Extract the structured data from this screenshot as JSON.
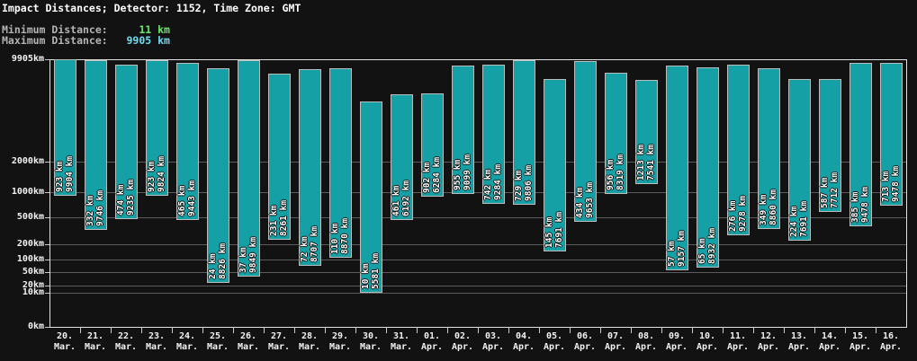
{
  "header": {
    "title": "Impact Distances; Detector: 1152, Time Zone: GMT",
    "min_label": "Minimum Distance:",
    "min_value": "11 km",
    "max_label": "Maximum Distance:",
    "max_value": "9905 km"
  },
  "colors": {
    "background": "#121212",
    "title_text": "#ffffff",
    "label_gray": "#b4b4b4",
    "min_value_green": "#6ae86a",
    "max_value_cyan": "#6fdcf2",
    "bar_fill": "#14a0a4",
    "bar_border": "#b9bebc",
    "grid": "#5b5b5b",
    "axis": "#e2e2e2",
    "bar_label_text": "#ffffff"
  },
  "chart_data": {
    "type": "bar",
    "subtype": "floating-range-bars",
    "title": "Impact Distances; Detector: 1152, Time Zone: GMT",
    "unit": "km",
    "grid": true,
    "y_scale": {
      "kind": "power",
      "exponent": 0.3,
      "min": 0,
      "max": 9905
    },
    "y_ticks": [
      {
        "value": 9905,
        "label": "9905km"
      },
      {
        "value": 2000,
        "label": "2000km"
      },
      {
        "value": 1000,
        "label": "1000km"
      },
      {
        "value": 500,
        "label": "500km"
      },
      {
        "value": 200,
        "label": "200km"
      },
      {
        "value": 100,
        "label": "100km"
      },
      {
        "value": 50,
        "label": "50km"
      },
      {
        "value": 20,
        "label": "20km"
      },
      {
        "value": 10,
        "label": "10km"
      },
      {
        "value": 0,
        "label": "0km"
      }
    ],
    "bars": [
      {
        "day": "20.",
        "month": "Mar.",
        "min": 923,
        "max": 9904
      },
      {
        "day": "21.",
        "month": "Mar.",
        "min": 332,
        "max": 9746
      },
      {
        "day": "22.",
        "month": "Mar.",
        "min": 474,
        "max": 9235
      },
      {
        "day": "23.",
        "month": "Mar.",
        "min": 923,
        "max": 9824
      },
      {
        "day": "24.",
        "month": "Mar.",
        "min": 465,
        "max": 9443
      },
      {
        "day": "25.",
        "month": "Mar.",
        "min": 24,
        "max": 8826
      },
      {
        "day": "26.",
        "month": "Mar.",
        "min": 37,
        "max": 9849
      },
      {
        "day": "27.",
        "month": "Mar.",
        "min": 231,
        "max": 8261
      },
      {
        "day": "28.",
        "month": "Mar.",
        "min": 72,
        "max": 8707
      },
      {
        "day": "29.",
        "month": "Mar.",
        "min": 110,
        "max": 8870
      },
      {
        "day": "30.",
        "month": "Mar.",
        "min": 10,
        "max": 5581
      },
      {
        "day": "31.",
        "month": "Mar.",
        "min": 461,
        "max": 6192
      },
      {
        "day": "01.",
        "month": "Apr.",
        "min": 902,
        "max": 6284
      },
      {
        "day": "02.",
        "month": "Apr.",
        "min": 955,
        "max": 9099
      },
      {
        "day": "03.",
        "month": "Apr.",
        "min": 742,
        "max": 9284
      },
      {
        "day": "04.",
        "month": "Apr.",
        "min": 729,
        "max": 9806
      },
      {
        "day": "05.",
        "month": "Apr.",
        "min": 145,
        "max": 7691
      },
      {
        "day": "06.",
        "month": "Apr.",
        "min": 434,
        "max": 9653
      },
      {
        "day": "07.",
        "month": "Apr.",
        "min": 956,
        "max": 8319
      },
      {
        "day": "08.",
        "month": "Apr.",
        "min": 1213,
        "max": 7541
      },
      {
        "day": "09.",
        "month": "Apr.",
        "min": 57,
        "max": 9157
      },
      {
        "day": "10.",
        "month": "Apr.",
        "min": 65,
        "max": 8932
      },
      {
        "day": "11.",
        "month": "Apr.",
        "min": 276,
        "max": 9278
      },
      {
        "day": "12.",
        "month": "Apr.",
        "min": 349,
        "max": 8860
      },
      {
        "day": "13.",
        "month": "Apr.",
        "min": 224,
        "max": 7691
      },
      {
        "day": "14.",
        "month": "Apr.",
        "min": 587,
        "max": 7712
      },
      {
        "day": "15.",
        "month": "Apr.",
        "min": 385,
        "max": 9478
      },
      {
        "day": "16.",
        "month": "Apr.",
        "min": 713,
        "max": 9478
      }
    ]
  }
}
